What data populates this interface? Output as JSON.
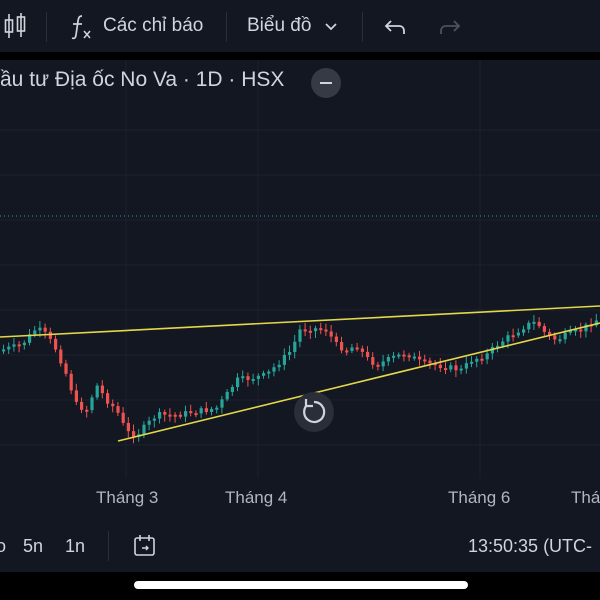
{
  "toolbar": {
    "indicators_label": "Các chỉ báo",
    "chart_label": "Biểu đồ"
  },
  "chart": {
    "title": "ầu tư Địa ốc No Va · 1D · HSX",
    "x_labels": [
      "Tháng 3",
      "Tháng 4",
      "Tháng 6",
      "Tháng"
    ]
  },
  "bottom": {
    "range_partial": "o",
    "range_5y": "5n",
    "range_1y": "1n",
    "clock": "13:50:35 (UTC-"
  },
  "colors": {
    "up": "#26a69a",
    "down": "#ef5350",
    "trendline": "#e4d74a",
    "dotted_line": "#26a69a"
  },
  "icons": [
    "candles-icon",
    "function-icon",
    "chevron-down-icon",
    "undo-icon",
    "redo-icon",
    "minus-icon",
    "reset-icon",
    "calendar-range-icon"
  ]
}
